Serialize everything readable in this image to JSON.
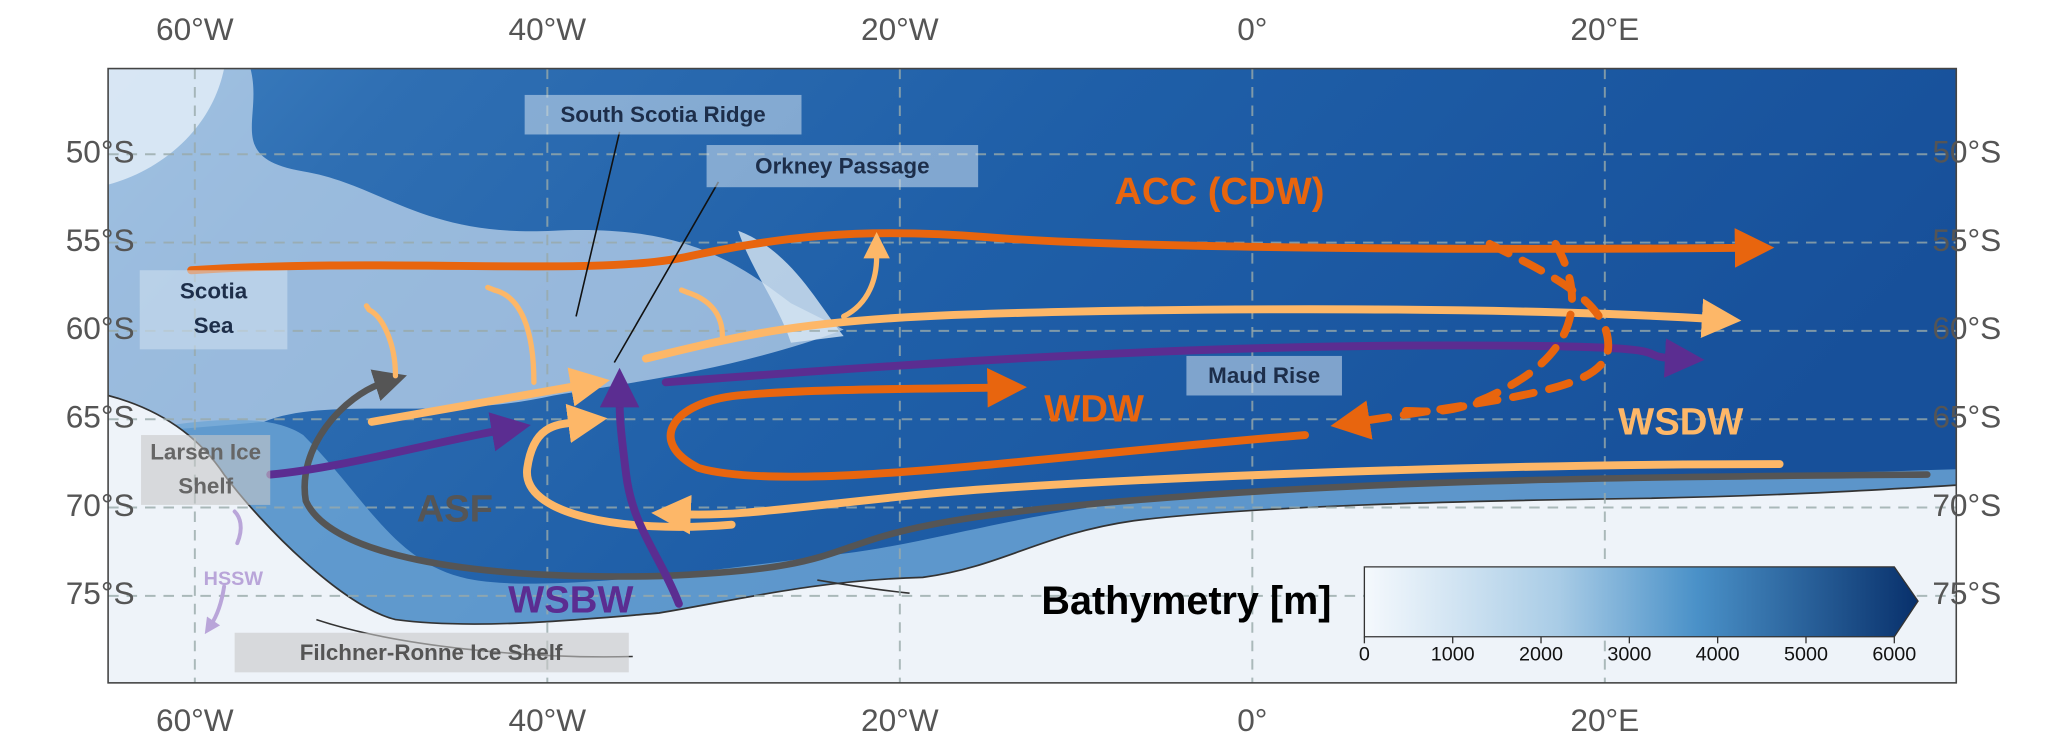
{
  "map": {
    "lon_ticks": [
      {
        "value": -60,
        "label": "60°W"
      },
      {
        "value": -40,
        "label": "40°W"
      },
      {
        "value": -20,
        "label": "20°W"
      },
      {
        "value": 0,
        "label": "0°"
      },
      {
        "value": 20,
        "label": "20°E"
      }
    ],
    "lat_ticks": [
      {
        "value": -50,
        "label": "50°S"
      },
      {
        "value": -55,
        "label": "55°S"
      },
      {
        "value": -60,
        "label": "60°S"
      },
      {
        "value": -65,
        "label": "65°S"
      },
      {
        "value": -70,
        "label": "70°S"
      },
      {
        "value": -75,
        "label": "75°S"
      }
    ],
    "features": {
      "south_scotia_ridge": "South Scotia Ridge",
      "orkney_passage": "Orkney Passage",
      "scotia_sea": [
        "Scotia",
        "Sea"
      ],
      "maud_rise": "Maud Rise",
      "larsen_ice_shelf": [
        "Larsen Ice",
        "Shelf"
      ],
      "filchner_ronne_ice_shelf": "Filchner-Ronne Ice Shelf",
      "hssw": "HSSW"
    },
    "currents": {
      "acc": "ACC (CDW)",
      "wdw": "WDW",
      "wsdw": "WSDW",
      "asf": "ASF",
      "wsbw": "WSBW"
    },
    "colorbar": {
      "label": "Bathymetry [m]",
      "ticks": [
        0,
        1000,
        2000,
        3000,
        4000,
        5000,
        6000
      ]
    }
  }
}
